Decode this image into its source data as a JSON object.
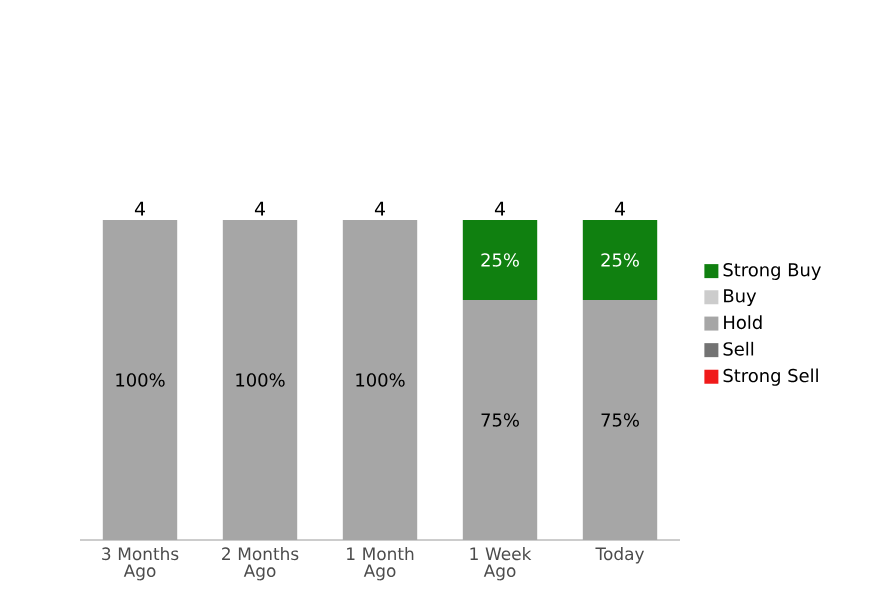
{
  "chart_data": {
    "type": "bar",
    "stacked": true,
    "legend": "right",
    "categories": [
      "3 Months Ago",
      "2 Months Ago",
      "1 Month Ago",
      "1 Week Ago",
      "Today"
    ],
    "series": [
      {
        "name": "Strong Sell",
        "color": "#f01a1a",
        "values": [
          0,
          0,
          0,
          0,
          0
        ],
        "value_labels": [
          null,
          null,
          null,
          null,
          null
        ]
      },
      {
        "name": "Sell",
        "color": "#737373",
        "values": [
          0,
          0,
          0,
          0,
          0
        ],
        "value_labels": [
          null,
          null,
          null,
          null,
          null
        ]
      },
      {
        "name": "Hold",
        "color": "#a6a6a6",
        "values": [
          100,
          100,
          100,
          75,
          75
        ],
        "value_labels": [
          "100%",
          "100%",
          "100%",
          "75%",
          "75%"
        ]
      },
      {
        "name": "Buy",
        "color": "#cccccc",
        "values": [
          0,
          0,
          0,
          0,
          0
        ],
        "value_labels": [
          null,
          null,
          null,
          null,
          null
        ]
      },
      {
        "name": "Strong Buy",
        "color": "#108010",
        "values": [
          0,
          0,
          0,
          25,
          25
        ],
        "value_labels": [
          null,
          null,
          null,
          "25%",
          "25%"
        ]
      }
    ],
    "annotations": [
      {
        "text": "4",
        "x": "3 Months Ago",
        "y": 100
      },
      {
        "text": "4",
        "x": "2 Months Ago",
        "y": 100
      },
      {
        "text": "4",
        "x": "1 Month Ago",
        "y": 100
      },
      {
        "text": "4",
        "x": "1 Week Ago",
        "y": 100
      },
      {
        "text": "4",
        "x": "Today",
        "y": 100
      }
    ]
  }
}
